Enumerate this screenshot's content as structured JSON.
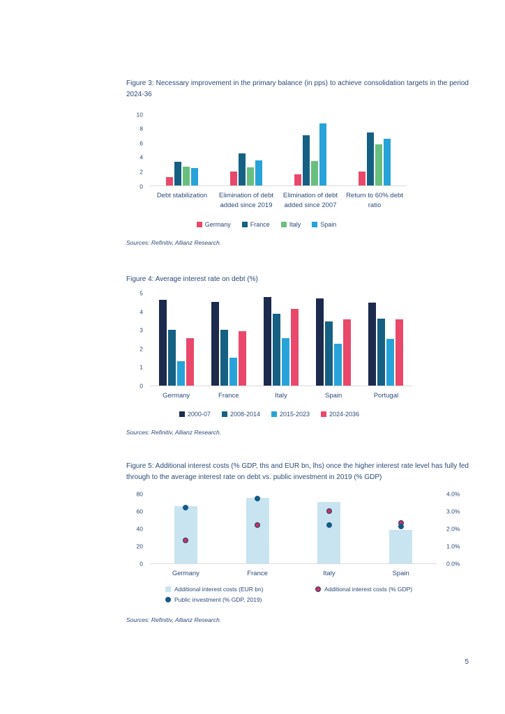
{
  "page_number": "5",
  "sources_note": "Sources: Refinitiv, Allianz Research.",
  "figures": {
    "fig3_caption": "Figure 3: Necessary improvement in the primary balance (in pps) to achieve consolidation targets in the period 2024-36",
    "fig4_caption": "Figure 4: Average interest rate on debt (%)",
    "fig5_caption": "Figure 5: Additional interest costs (% GDP, ths and EUR bn, lhs) once the higher interest rate level has fully fed through to the average interest rate on debt vs. public investment in 2019 (% GDP)"
  },
  "colors": {
    "text_navy": "#2b4a77",
    "germany_pink": "#e9486b",
    "france_blue": "#156083",
    "italy_green": "#69bf7d",
    "spain_lightblue": "#27a3da",
    "navy_2000": "#1b2a4d",
    "pale_bar": "#c8e4f0",
    "navy_dot": "#175a86",
    "red_dot": "#c9315e"
  },
  "chart_data": [
    {
      "id": "fig3",
      "type": "bar",
      "title": "Necessary improvement in the primary balance (in pps) to achieve consolidation targets in the period 2024-36",
      "categories": [
        "Debt stabilization",
        "Elimination of debt added since 2019",
        "Elimination of debt added since 2007",
        "Return to 60% debt ratio"
      ],
      "series": [
        {
          "name": "Germany",
          "color": "#e9486b",
          "values": [
            1.2,
            1.9,
            1.6,
            1.9
          ]
        },
        {
          "name": "France",
          "color": "#156083",
          "values": [
            3.3,
            4.5,
            7.0,
            7.4
          ]
        },
        {
          "name": "Italy",
          "color": "#69bf7d",
          "values": [
            2.6,
            2.5,
            3.4,
            5.7
          ]
        },
        {
          "name": "Spain",
          "color": "#27a3da",
          "values": [
            2.4,
            3.5,
            8.6,
            6.5
          ]
        }
      ],
      "ylim": [
        0,
        10
      ],
      "yticks": [
        0,
        2,
        4,
        6,
        8,
        10
      ],
      "grid": false,
      "legend_position": "bottom"
    },
    {
      "id": "fig4",
      "type": "bar",
      "title": "Average interest rate on debt (%)",
      "categories": [
        "Germany",
        "France",
        "Italy",
        "Spain",
        "Portugal"
      ],
      "series": [
        {
          "name": "2000-07",
          "color": "#1b2a4d",
          "values": [
            4.6,
            4.5,
            4.75,
            4.7,
            4.45
          ]
        },
        {
          "name": "2008-2014",
          "color": "#156083",
          "values": [
            3.0,
            3.0,
            3.85,
            3.45,
            3.6
          ]
        },
        {
          "name": "2015-2023",
          "color": "#27a3da",
          "values": [
            1.3,
            1.5,
            2.55,
            2.25,
            2.5
          ]
        },
        {
          "name": "2024-2036",
          "color": "#e9486b",
          "values": [
            2.55,
            2.9,
            4.1,
            3.55,
            3.55
          ]
        }
      ],
      "ylim": [
        0,
        5
      ],
      "yticks": [
        0,
        1,
        2,
        3,
        4,
        5
      ],
      "grid": false,
      "legend_position": "bottom"
    },
    {
      "id": "fig5",
      "type": "combo",
      "title": "Additional interest costs (% GDP, ths and EUR bn, lhs) once the higher interest rate level has fully fed through to the average interest rate on debt vs. public investment in 2019 (% GDP)",
      "categories": [
        "Germany",
        "France",
        "Italy",
        "Spain"
      ],
      "bars": {
        "name": "Additional interest costs (EUR bn)",
        "color": "#c8e4f0",
        "axis": "left",
        "values": [
          65,
          75,
          70,
          38
        ]
      },
      "dots": [
        {
          "name": "Additional interest costs (% GDP)",
          "color": "#c9315e",
          "border": "#23406b",
          "axis": "right",
          "values": [
            1.3,
            2.2,
            3.0,
            2.3
          ]
        },
        {
          "name": "Public investment (% GDP, 2019)",
          "color": "#175a86",
          "border": "#175a86",
          "axis": "right",
          "values": [
            3.2,
            3.7,
            2.2,
            2.1
          ]
        }
      ],
      "left_ylim": [
        0,
        80
      ],
      "left_yticks": [
        0,
        20,
        40,
        60,
        80
      ],
      "right_ylim": [
        0,
        4
      ],
      "right_yticks": [
        "0.0%",
        "1.0%",
        "2.0%",
        "3.0%",
        "4.0%"
      ],
      "grid": false,
      "legend_position": "bottom"
    }
  ]
}
